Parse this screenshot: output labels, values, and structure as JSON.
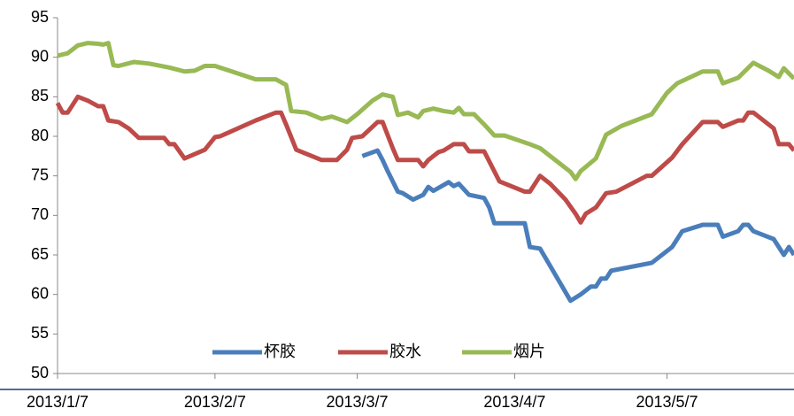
{
  "chart_data": {
    "type": "line",
    "xlim": [
      "2013/1/7",
      "2013/6/1"
    ],
    "xticks": [
      "2013/1/7",
      "2013/2/7",
      "2013/3/7",
      "2013/4/7",
      "2013/5/7"
    ],
    "ylim": [
      50,
      95
    ],
    "yticks": [
      50,
      55,
      60,
      65,
      70,
      75,
      80,
      85,
      90,
      95
    ],
    "grid": false,
    "legend": "bottom",
    "series": [
      {
        "name": "杯胶",
        "color": "#4a7ebb",
        "x": [
          "2013/3/8",
          "2013/3/11",
          "2013/3/12",
          "2013/3/13",
          "2013/3/15",
          "2013/3/16",
          "2013/3/18",
          "2013/3/20",
          "2013/3/21",
          "2013/3/22",
          "2013/3/25",
          "2013/3/26",
          "2013/3/27",
          "2013/3/29",
          "2013/4/1",
          "2013/4/2",
          "2013/4/3",
          "2013/4/9",
          "2013/4/10",
          "2013/4/12",
          "2013/4/18",
          "2013/4/20",
          "2013/4/22",
          "2013/4/23",
          "2013/4/24",
          "2013/4/25",
          "2013/4/26",
          "2013/5/4",
          "2013/5/8",
          "2013/5/10",
          "2013/5/14",
          "2013/5/17",
          "2013/5/18",
          "2013/5/21",
          "2013/5/22",
          "2013/5/23",
          "2013/5/24",
          "2013/5/28",
          "2013/5/30",
          "2013/5/31",
          "2013/6/1"
        ],
        "values": [
          77.5,
          78.2,
          77,
          75.6,
          73,
          72.8,
          72,
          72.6,
          73.6,
          73.1,
          74.2,
          73.7,
          74,
          72.6,
          72.2,
          71,
          69,
          69,
          66,
          65.8,
          59.2,
          60,
          61,
          61,
          62,
          62,
          63,
          64,
          66,
          68,
          68.8,
          68.8,
          67.3,
          68,
          68.8,
          68.8,
          68,
          67,
          65,
          66,
          65
        ]
      },
      {
        "name": "胶水",
        "color": "#be4b48",
        "x": [
          "2013/1/7",
          "2013/1/8",
          "2013/1/9",
          "2013/1/11",
          "2013/1/13",
          "2013/1/15",
          "2013/1/16",
          "2013/1/17",
          "2013/1/19",
          "2013/1/21",
          "2013/1/23",
          "2013/1/28",
          "2013/1/29",
          "2013/1/30",
          "2013/2/1",
          "2013/2/5",
          "2013/2/7",
          "2013/2/8",
          "2013/2/15",
          "2013/2/19",
          "2013/2/20",
          "2013/2/21",
          "2013/2/23",
          "2013/2/28",
          "2013/3/3",
          "2013/3/5",
          "2013/3/6",
          "2013/3/8",
          "2013/3/11",
          "2013/3/12",
          "2013/3/14",
          "2013/3/15",
          "2013/3/19",
          "2013/3/20",
          "2013/3/21",
          "2013/3/23",
          "2013/3/24",
          "2013/3/26",
          "2013/3/28",
          "2013/3/29",
          "2013/4/1",
          "2013/4/4",
          "2013/4/9",
          "2013/4/10",
          "2013/4/12",
          "2013/4/14",
          "2013/4/17",
          "2013/4/19",
          "2013/4/20",
          "2013/4/21",
          "2013/4/23",
          "2013/4/25",
          "2013/4/27",
          "2013/5/3",
          "2013/5/4",
          "2013/5/8",
          "2013/5/10",
          "2013/5/14",
          "2013/5/17",
          "2013/5/18",
          "2013/5/21",
          "2013/5/22",
          "2013/5/23",
          "2013/5/24",
          "2013/5/28",
          "2013/5/29",
          "2013/5/31",
          "2013/6/1"
        ],
        "values": [
          84.2,
          83,
          83,
          85,
          84.5,
          83.8,
          83.8,
          82,
          81.8,
          81,
          79.8,
          79.8,
          79,
          79,
          77.2,
          78.3,
          79.9,
          80,
          82,
          83,
          83,
          81.5,
          78.3,
          77,
          77,
          78.3,
          79.8,
          80,
          81.8,
          81.8,
          78.5,
          77,
          77,
          76.2,
          77,
          78,
          78.2,
          79,
          79,
          78.1,
          78.1,
          74.3,
          73,
          73,
          75,
          74,
          72,
          70.2,
          69.1,
          70.2,
          71,
          72.8,
          73,
          75,
          75,
          77.3,
          79,
          81.8,
          81.8,
          81.2,
          82,
          82,
          83,
          83,
          81,
          79,
          79,
          78.2
        ]
      },
      {
        "name": "烟片",
        "color": "#98b954",
        "x": [
          "2013/1/7",
          "2013/1/9",
          "2013/1/11",
          "2013/1/13",
          "2013/1/15",
          "2013/1/16",
          "2013/1/17",
          "2013/1/18",
          "2013/1/19",
          "2013/1/22",
          "2013/1/25",
          "2013/1/29",
          "2013/2/1",
          "2013/2/3",
          "2013/2/5",
          "2013/2/7",
          "2013/2/15",
          "2013/2/19",
          "2013/2/21",
          "2013/2/22",
          "2013/2/25",
          "2013/2/28",
          "2013/3/2",
          "2013/3/5",
          "2013/3/7",
          "2013/3/10",
          "2013/3/12",
          "2013/3/14",
          "2013/3/15",
          "2013/3/17",
          "2013/3/19",
          "2013/3/20",
          "2013/3/22",
          "2013/3/24",
          "2013/3/26",
          "2013/3/27",
          "2013/3/28",
          "2013/3/30",
          "2013/4/1",
          "2013/4/3",
          "2013/4/5",
          "2013/4/10",
          "2013/4/12",
          "2013/4/18",
          "2013/4/19",
          "2013/4/20",
          "2013/4/23",
          "2013/4/25",
          "2013/4/28",
          "2013/5/4",
          "2013/5/7",
          "2013/5/9",
          "2013/5/14",
          "2013/5/17",
          "2013/5/18",
          "2013/5/21",
          "2013/5/24",
          "2013/5/27",
          "2013/5/29",
          "2013/5/30",
          "2013/6/1"
        ],
        "values": [
          90.2,
          90.5,
          91.5,
          91.8,
          91.7,
          91.6,
          91.8,
          89,
          88.9,
          89.4,
          89.2,
          88.7,
          88.2,
          88.3,
          88.9,
          88.9,
          87.2,
          87.2,
          86.5,
          83.2,
          83,
          82.2,
          82.5,
          81.8,
          82.8,
          84.5,
          85.3,
          85,
          82.7,
          83,
          82.4,
          83.2,
          83.5,
          83.2,
          83,
          83.6,
          82.8,
          82.8,
          81.5,
          80.1,
          80.1,
          79,
          78.5,
          75.5,
          74.6,
          75.6,
          77.2,
          80.2,
          81.3,
          82.8,
          85.5,
          86.7,
          88.2,
          88.2,
          86.7,
          87.4,
          89.3,
          88.3,
          87.5,
          88.6,
          87.3
        ]
      }
    ]
  }
}
